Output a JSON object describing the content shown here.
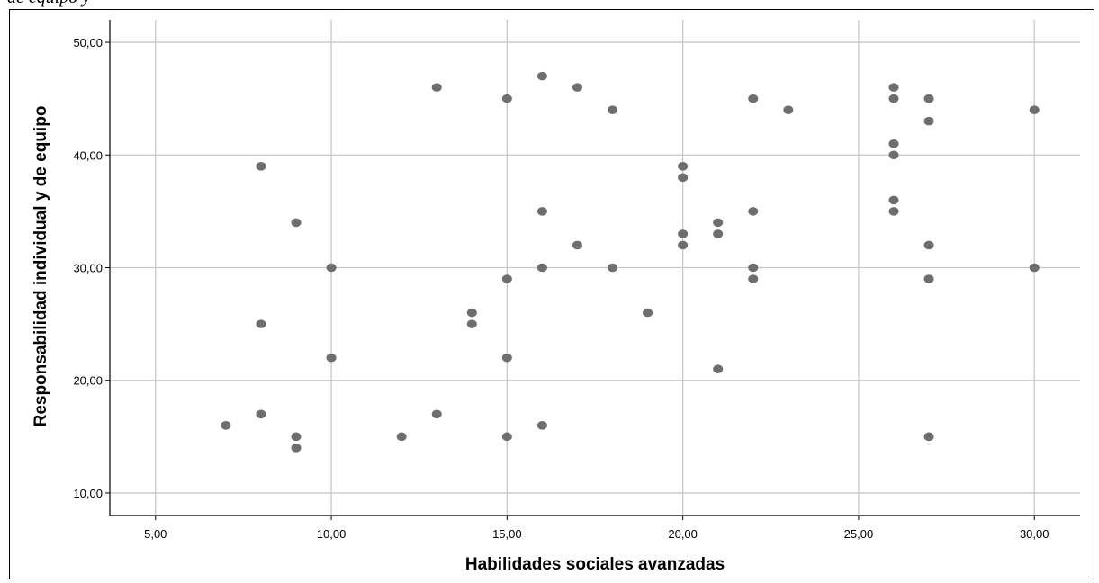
{
  "caption": "de equipo y",
  "chart_data": {
    "type": "scatter",
    "title": "",
    "xlabel": "Habilidades sociales avanzadas",
    "ylabel": "Responsabilidad individual y de equipo",
    "xlim": [
      3.7,
      31.3
    ],
    "ylim": [
      8.0,
      52.0
    ],
    "xticks": [
      5,
      10,
      15,
      20,
      25,
      30
    ],
    "yticks": [
      10,
      20,
      30,
      40,
      50
    ],
    "xtick_labels": [
      "5,00",
      "10,00",
      "15,00",
      "20,00",
      "25,00",
      "30,00"
    ],
    "ytick_labels": [
      "10,00",
      "20,00",
      "30,00",
      "40,00",
      "50,00"
    ],
    "grid": true,
    "marker_color": "#6e6e6e",
    "grid_color": "#c8c8c8",
    "points": [
      [
        7,
        16
      ],
      [
        8,
        39
      ],
      [
        8,
        25
      ],
      [
        8,
        17
      ],
      [
        9,
        34
      ],
      [
        9,
        15
      ],
      [
        9,
        14
      ],
      [
        10,
        30
      ],
      [
        10,
        22
      ],
      [
        12,
        15
      ],
      [
        13,
        46
      ],
      [
        13,
        17
      ],
      [
        14,
        26
      ],
      [
        14,
        25
      ],
      [
        15,
        45
      ],
      [
        15,
        29
      ],
      [
        15,
        22
      ],
      [
        15,
        15
      ],
      [
        16,
        47
      ],
      [
        16,
        35
      ],
      [
        16,
        30
      ],
      [
        16,
        16
      ],
      [
        17,
        46
      ],
      [
        17,
        32
      ],
      [
        18,
        44
      ],
      [
        18,
        30
      ],
      [
        19,
        26
      ],
      [
        20,
        39
      ],
      [
        20,
        38
      ],
      [
        20,
        33
      ],
      [
        20,
        32
      ],
      [
        21,
        34
      ],
      [
        21,
        33
      ],
      [
        21,
        21
      ],
      [
        22,
        45
      ],
      [
        22,
        35
      ],
      [
        22,
        30
      ],
      [
        22,
        29
      ],
      [
        23,
        44
      ],
      [
        26,
        46
      ],
      [
        26,
        45
      ],
      [
        26,
        41
      ],
      [
        26,
        40
      ],
      [
        26,
        36
      ],
      [
        26,
        35
      ],
      [
        27,
        45
      ],
      [
        27,
        43
      ],
      [
        27,
        32
      ],
      [
        27,
        29
      ],
      [
        27,
        15
      ],
      [
        30,
        44
      ],
      [
        30,
        30
      ]
    ]
  }
}
